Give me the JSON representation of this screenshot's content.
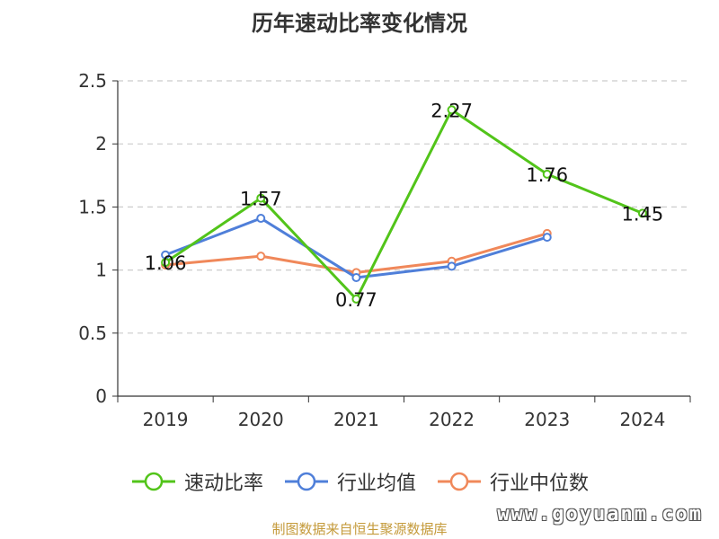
{
  "chart_data": {
    "type": "line",
    "title": "历年速动比率变化情况",
    "categories": [
      "2019",
      "2020",
      "2021",
      "2022",
      "2023",
      "2024"
    ],
    "ylim": [
      0,
      2.5
    ],
    "yticks": [
      "0",
      "0.5",
      "1",
      "1.5",
      "2",
      "2.5"
    ],
    "grid": true,
    "legend_position": "bottom",
    "series": [
      {
        "name": "速动比率",
        "color": "#52c41a",
        "values": [
          1.06,
          1.57,
          0.77,
          2.27,
          1.76,
          1.45
        ],
        "labels": [
          "1.06",
          "1.57",
          "0.77",
          "2.27",
          "1.76",
          "1.45"
        ]
      },
      {
        "name": "行业均值",
        "color": "#4f7fd9",
        "values": [
          1.12,
          1.41,
          0.94,
          1.03,
          1.26,
          null
        ]
      },
      {
        "name": "行业中位数",
        "color": "#f0885a",
        "values": [
          1.04,
          1.11,
          0.98,
          1.07,
          1.29,
          null
        ]
      }
    ]
  },
  "footer": {
    "source": "制图数据来自恒生聚源数据库",
    "watermark": "www.goyuanm.com"
  }
}
